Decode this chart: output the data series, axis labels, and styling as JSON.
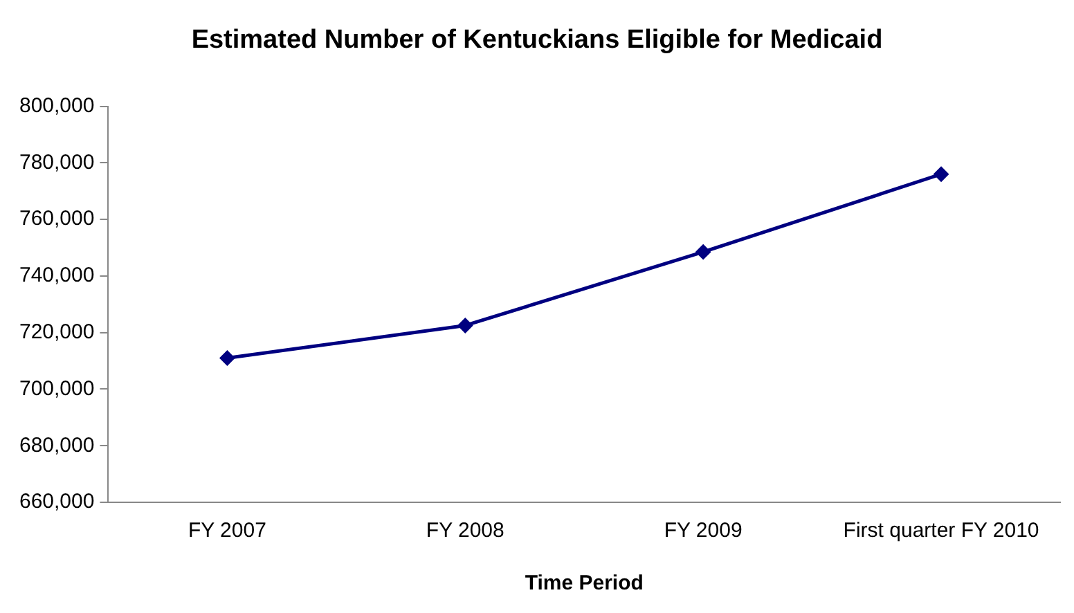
{
  "chart_data": {
    "type": "line",
    "title": "Estimated Number of Kentuckians Eligible for Medicaid",
    "xlabel": "Time Period",
    "categories": [
      "FY 2007",
      "FY 2008",
      "FY 2009",
      "First quarter FY 2010"
    ],
    "series": [
      {
        "color": "#000080",
        "values": [
          711000,
          722500,
          748500,
          776000
        ]
      }
    ],
    "ylim": [
      660000,
      800000
    ],
    "yticks": [
      {
        "value": 660000,
        "label": "660,000"
      },
      {
        "value": 680000,
        "label": "680,000"
      },
      {
        "value": 700000,
        "label": "700,000"
      },
      {
        "value": 720000,
        "label": "720,000"
      },
      {
        "value": 740000,
        "label": "740,000"
      },
      {
        "value": 760000,
        "label": "760,000"
      },
      {
        "value": 780000,
        "label": "780,000"
      },
      {
        "value": 800000,
        "label": "800,000"
      }
    ],
    "grid": false,
    "legend": false,
    "marker": "diamond",
    "line_style": "solid"
  }
}
